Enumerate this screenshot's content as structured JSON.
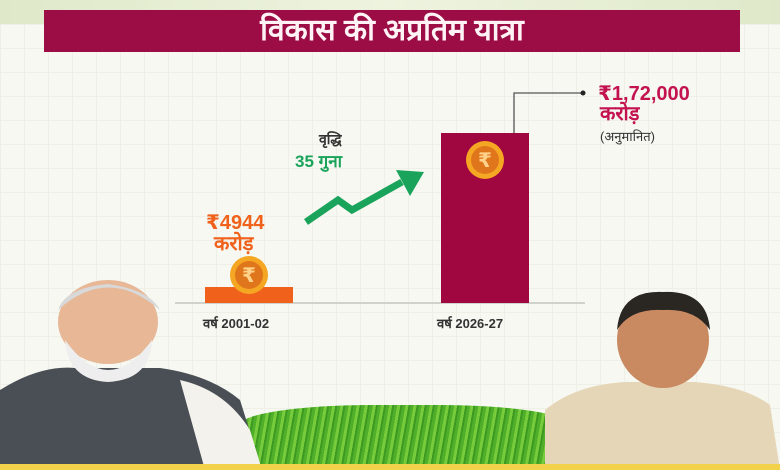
{
  "title": "विकास की अप्रतिम यात्रा",
  "chart_data": {
    "type": "bar",
    "title": "विकास की अप्रतिम यात्रा",
    "categories": [
      "वर्ष 2001-02",
      "वर्ष 2026-27"
    ],
    "values": [
      4944,
      172000
    ],
    "unit": "करोड़",
    "value_labels": [
      "₹4944",
      "₹1,72,000"
    ],
    "unit_label": "करोड़",
    "estimate_note": "(अनुमानित)",
    "growth_label": "वृद्धि",
    "growth_value": "35 गुना",
    "colors": {
      "bar_2001": "#f0621c",
      "bar_2026": "#a0063f",
      "arrow": "#1aa35a",
      "coin": "#f08a1c",
      "banner": "#9c0c45"
    },
    "icons": [
      "rupee-coin-icon",
      "trend-up-arrow-icon"
    ]
  }
}
